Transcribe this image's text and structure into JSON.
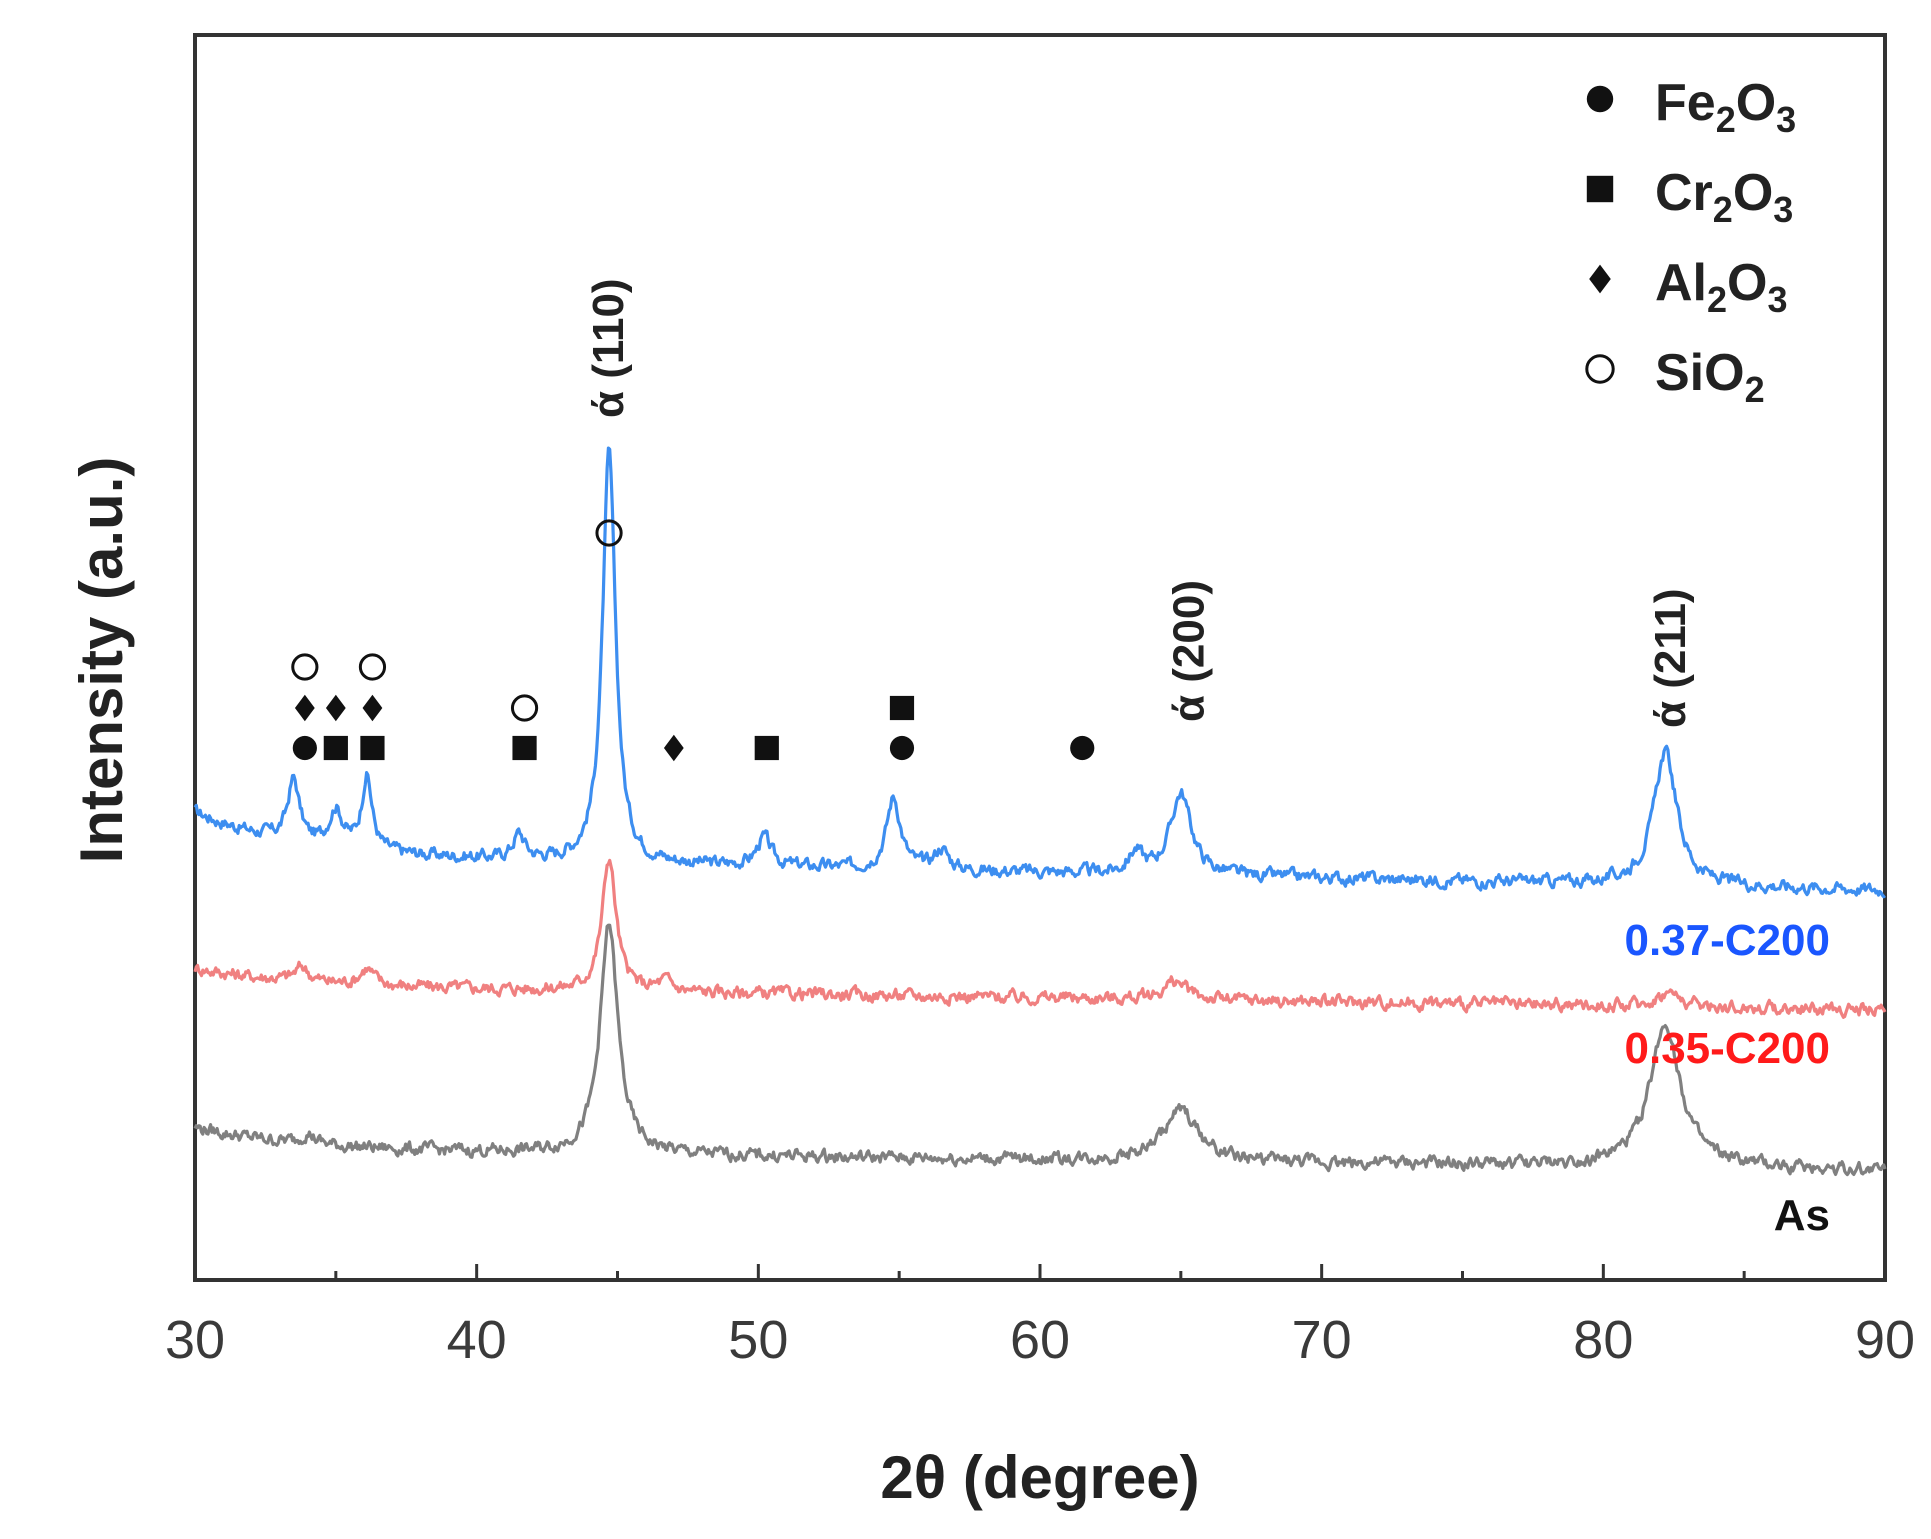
{
  "chart_data": {
    "type": "line",
    "xlabel": "2θ (degree)",
    "ylabel": "Intensity (a.u.)",
    "xlim": [
      30,
      90
    ],
    "xticks": [
      "30",
      "40",
      "50",
      "60",
      "70",
      "80",
      "90"
    ],
    "y_tick_labels": "none",
    "grid": false,
    "legend_position": "top-right",
    "legend": [
      {
        "marker": "filled-circle",
        "base": "Fe",
        "sub1": "2",
        "mid": "O",
        "sub2": "3"
      },
      {
        "marker": "filled-square",
        "base": "Cr",
        "sub1": "2",
        "mid": "O",
        "sub2": "3"
      },
      {
        "marker": "filled-diamond",
        "base": "Al",
        "sub1": "2",
        "mid": "O",
        "sub2": "3"
      },
      {
        "marker": "open-circle",
        "base": "SiO",
        "sub1": "2",
        "mid": "",
        "sub2": ""
      }
    ],
    "series": [
      {
        "name": "0.37-C200",
        "color": "#3d8ef0",
        "label_color": "#1a56ff",
        "baseline": 0.7,
        "baseline_end": 0.53,
        "start_hump": 0.35,
        "peaks": [
          {
            "x": 33.5,
            "h": 0.3,
            "w": 0.25
          },
          {
            "x": 35.0,
            "h": 0.18,
            "w": 0.3
          },
          {
            "x": 36.1,
            "h": 0.36,
            "w": 0.22
          },
          {
            "x": 41.5,
            "h": 0.12,
            "w": 0.25
          },
          {
            "x": 44.7,
            "h": 2.0,
            "w": 0.28
          },
          {
            "x": 50.2,
            "h": 0.14,
            "w": 0.3
          },
          {
            "x": 54.8,
            "h": 0.35,
            "w": 0.3
          },
          {
            "x": 56.5,
            "h": 0.1,
            "w": 0.3
          },
          {
            "x": 63.4,
            "h": 0.1,
            "w": 0.3
          },
          {
            "x": 65.0,
            "h": 0.4,
            "w": 0.45
          },
          {
            "x": 82.2,
            "h": 0.65,
            "w": 0.5
          }
        ]
      },
      {
        "name": "0.35-C200",
        "color": "#f08080",
        "label_color": "#ff1a1a",
        "baseline": 0.42,
        "baseline_end": 0.3,
        "start_hump": 0.14,
        "peaks": [
          {
            "x": 33.8,
            "h": 0.07,
            "w": 0.3
          },
          {
            "x": 36.1,
            "h": 0.08,
            "w": 0.3
          },
          {
            "x": 44.7,
            "h": 0.65,
            "w": 0.3
          },
          {
            "x": 46.7,
            "h": 0.05,
            "w": 0.3
          },
          {
            "x": 64.8,
            "h": 0.09,
            "w": 0.5
          },
          {
            "x": 82.3,
            "h": 0.07,
            "w": 0.5
          }
        ]
      },
      {
        "name": "As",
        "color": "#808080",
        "label_color": "#111111",
        "baseline": 0.1,
        "baseline_end": 0.0,
        "start_hump": 0.18,
        "peaks": [
          {
            "x": 34.0,
            "h": 0.05,
            "w": 0.3
          },
          {
            "x": 44.7,
            "h": 1.12,
            "w": 0.38
          },
          {
            "x": 65.0,
            "h": 0.25,
            "w": 0.75
          },
          {
            "x": 82.2,
            "h": 0.7,
            "w": 0.65
          }
        ]
      }
    ],
    "phase_markers": [
      {
        "x": 33.9,
        "row": 0,
        "marker": "filled-circle"
      },
      {
        "x": 35.0,
        "row": 0,
        "marker": "filled-square"
      },
      {
        "x": 36.3,
        "row": 0,
        "marker": "filled-square"
      },
      {
        "x": 41.7,
        "row": 0,
        "marker": "filled-square"
      },
      {
        "x": 47.0,
        "row": 0,
        "marker": "filled-diamond"
      },
      {
        "x": 50.3,
        "row": 0,
        "marker": "filled-square"
      },
      {
        "x": 55.1,
        "row": 0,
        "marker": "filled-circle"
      },
      {
        "x": 61.5,
        "row": 0,
        "marker": "filled-circle"
      },
      {
        "x": 33.9,
        "row": 1,
        "marker": "filled-diamond"
      },
      {
        "x": 35.0,
        "row": 1,
        "marker": "filled-diamond"
      },
      {
        "x": 36.3,
        "row": 1,
        "marker": "filled-diamond"
      },
      {
        "x": 41.7,
        "row": 1,
        "marker": "open-circle"
      },
      {
        "x": 55.1,
        "row": 1,
        "marker": "filled-square"
      },
      {
        "x": 33.9,
        "row": 2,
        "marker": "open-circle"
      },
      {
        "x": 36.3,
        "row": 2,
        "marker": "open-circle"
      },
      {
        "x": 44.7,
        "row": 4,
        "marker": "open-circle"
      }
    ],
    "peak_labels": [
      {
        "x": 44.7,
        "text": "ά (110)"
      },
      {
        "x": 65.3,
        "text": "ά (200)"
      },
      {
        "x": 82.4,
        "text": "ά (211)"
      }
    ]
  }
}
